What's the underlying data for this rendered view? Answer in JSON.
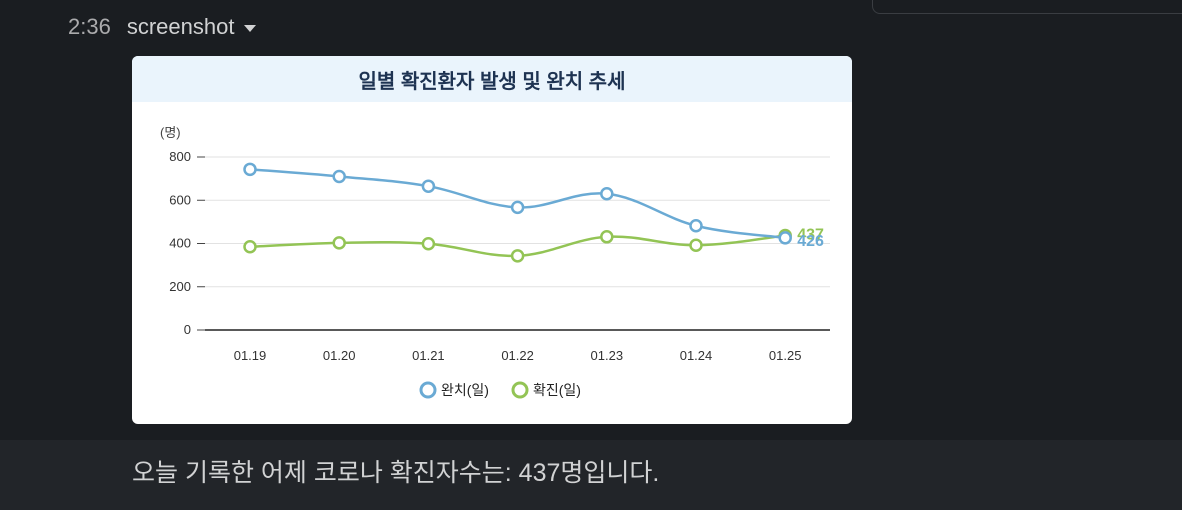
{
  "message": {
    "time": "2:36",
    "name": "screenshot",
    "text": "오늘 기록한 어제 코로나 확진자수는: 437명입니다."
  },
  "chart_data": {
    "type": "line",
    "title": "일별 확진환자 발생 및 완치 추세",
    "ylabel": "(명)",
    "xlabel": "",
    "categories": [
      "01.19",
      "01.20",
      "01.21",
      "01.22",
      "01.23",
      "01.24",
      "01.25"
    ],
    "yticks": [
      0,
      200,
      400,
      600,
      800
    ],
    "ylim": [
      0,
      800
    ],
    "grid": true,
    "legend_position": "bottom",
    "series": [
      {
        "name": "완치(일)",
        "color": "#6aaad4",
        "values": [
          743,
          710,
          665,
          567,
          630,
          482,
          426
        ],
        "end_label": "426"
      },
      {
        "name": "확진(일)",
        "color": "#93c455",
        "values": [
          385,
          403,
          399,
          343,
          431,
          392,
          437
        ],
        "end_label": "437"
      }
    ]
  }
}
